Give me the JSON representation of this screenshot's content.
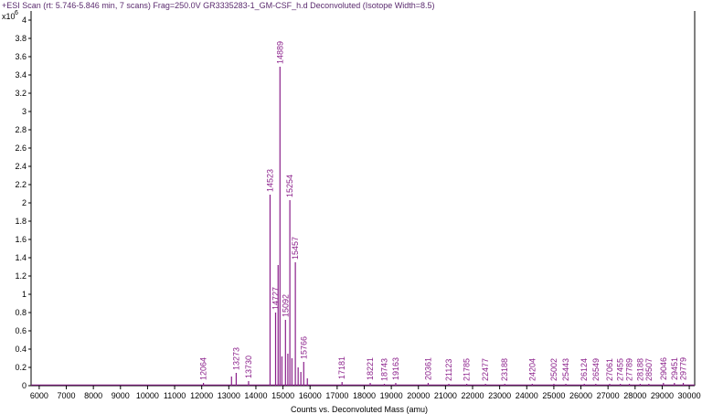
{
  "chart_data": {
    "type": "line",
    "title": "+ESI Scan (rt: 5.746-5.846 min, 7 scans) Frag=250.0V GR3335283-1_GM-CSF_h.d  Deconvoluted (Isotope Width=8.5)",
    "xlabel": "Counts vs. Deconvoluted Mass (amu)",
    "y_exponent_label": "x10",
    "y_exponent_power": "6",
    "xlim": [
      5700,
      30200
    ],
    "ylim": [
      0,
      4.1
    ],
    "x_ticks": [
      6000,
      7000,
      8000,
      9000,
      10000,
      11000,
      12000,
      13000,
      14000,
      15000,
      16000,
      17000,
      18000,
      19000,
      20000,
      21000,
      22000,
      23000,
      24000,
      25000,
      26000,
      27000,
      28000,
      29000,
      30000
    ],
    "x_tick_labels": [
      "6000",
      "7000",
      "8000",
      "9000",
      "10000",
      "11000",
      "12000",
      "13000",
      "14000",
      "15000",
      "16000",
      "17000",
      "18000",
      "19000",
      "20000",
      "21000",
      "22000",
      "23000",
      "24000",
      "25000",
      "26000",
      "27000",
      "28000",
      "29000",
      "30000"
    ],
    "y_ticks": [
      0,
      0.2,
      0.4,
      0.6,
      0.8,
      1,
      1.2,
      1.4,
      1.6,
      1.8,
      2,
      2.2,
      2.4,
      2.6,
      2.8,
      3,
      3.2,
      3.4,
      3.6,
      3.8,
      4
    ],
    "y_tick_labels": [
      "0",
      "0.2",
      "0.4",
      "0.6",
      "0.8",
      "1",
      "1.2",
      "1.4",
      "1.6",
      "1.8",
      "2",
      "2.2",
      "2.4",
      "2.6",
      "2.8",
      "3",
      "3.2",
      "3.4",
      "3.6",
      "3.8",
      "4"
    ],
    "color": "#8a1e8a",
    "series": [
      {
        "peaks": [
          {
            "mass": 12064,
            "intensity": 0.03,
            "label": "12064"
          },
          {
            "mass": 13100,
            "intensity": 0.1,
            "label": ""
          },
          {
            "mass": 13273,
            "intensity": 0.14,
            "label": "13273"
          },
          {
            "mass": 13730,
            "intensity": 0.05,
            "label": "13730"
          },
          {
            "mass": 14523,
            "intensity": 2.09,
            "label": "14523"
          },
          {
            "mass": 14727,
            "intensity": 0.8,
            "label": "14727"
          },
          {
            "mass": 14820,
            "intensity": 1.32,
            "label": ""
          },
          {
            "mass": 14889,
            "intensity": 3.49,
            "label": "14889"
          },
          {
            "mass": 14960,
            "intensity": 0.32,
            "label": ""
          },
          {
            "mass": 15092,
            "intensity": 0.72,
            "label": "15092"
          },
          {
            "mass": 15180,
            "intensity": 0.35,
            "label": ""
          },
          {
            "mass": 15254,
            "intensity": 2.03,
            "label": "15254"
          },
          {
            "mass": 15330,
            "intensity": 0.3,
            "label": ""
          },
          {
            "mass": 15457,
            "intensity": 1.35,
            "label": "15457"
          },
          {
            "mass": 15560,
            "intensity": 0.2,
            "label": ""
          },
          {
            "mass": 15660,
            "intensity": 0.15,
            "label": ""
          },
          {
            "mass": 15766,
            "intensity": 0.26,
            "label": "15766"
          },
          {
            "mass": 15900,
            "intensity": 0.08,
            "label": ""
          },
          {
            "mass": 17181,
            "intensity": 0.04,
            "label": "17181"
          },
          {
            "mass": 18221,
            "intensity": 0.03,
            "label": "18221"
          },
          {
            "mass": 18743,
            "intensity": 0.02,
            "label": "18743"
          },
          {
            "mass": 19163,
            "intensity": 0.03,
            "label": "19163"
          },
          {
            "mass": 20361,
            "intensity": 0.03,
            "label": "20361"
          },
          {
            "mass": 21123,
            "intensity": 0.02,
            "label": "21123"
          },
          {
            "mass": 21785,
            "intensity": 0.02,
            "label": "21785"
          },
          {
            "mass": 22477,
            "intensity": 0.02,
            "label": "22477"
          },
          {
            "mass": 23188,
            "intensity": 0.02,
            "label": "23188"
          },
          {
            "mass": 24204,
            "intensity": 0.02,
            "label": "24204"
          },
          {
            "mass": 25002,
            "intensity": 0.02,
            "label": "25002"
          },
          {
            "mass": 25443,
            "intensity": 0.02,
            "label": "25443"
          },
          {
            "mass": 26124,
            "intensity": 0.02,
            "label": "26124"
          },
          {
            "mass": 26549,
            "intensity": 0.02,
            "label": "26549"
          },
          {
            "mass": 27061,
            "intensity": 0.02,
            "label": "27061"
          },
          {
            "mass": 27455,
            "intensity": 0.02,
            "label": "27455"
          },
          {
            "mass": 27789,
            "intensity": 0.02,
            "label": "27789"
          },
          {
            "mass": 28188,
            "intensity": 0.02,
            "label": "28188"
          },
          {
            "mass": 28507,
            "intensity": 0.02,
            "label": "28507"
          },
          {
            "mass": 29046,
            "intensity": 0.03,
            "label": "29046"
          },
          {
            "mass": 29451,
            "intensity": 0.03,
            "label": "29451"
          },
          {
            "mass": 29779,
            "intensity": 0.03,
            "label": "29779"
          }
        ]
      }
    ]
  }
}
